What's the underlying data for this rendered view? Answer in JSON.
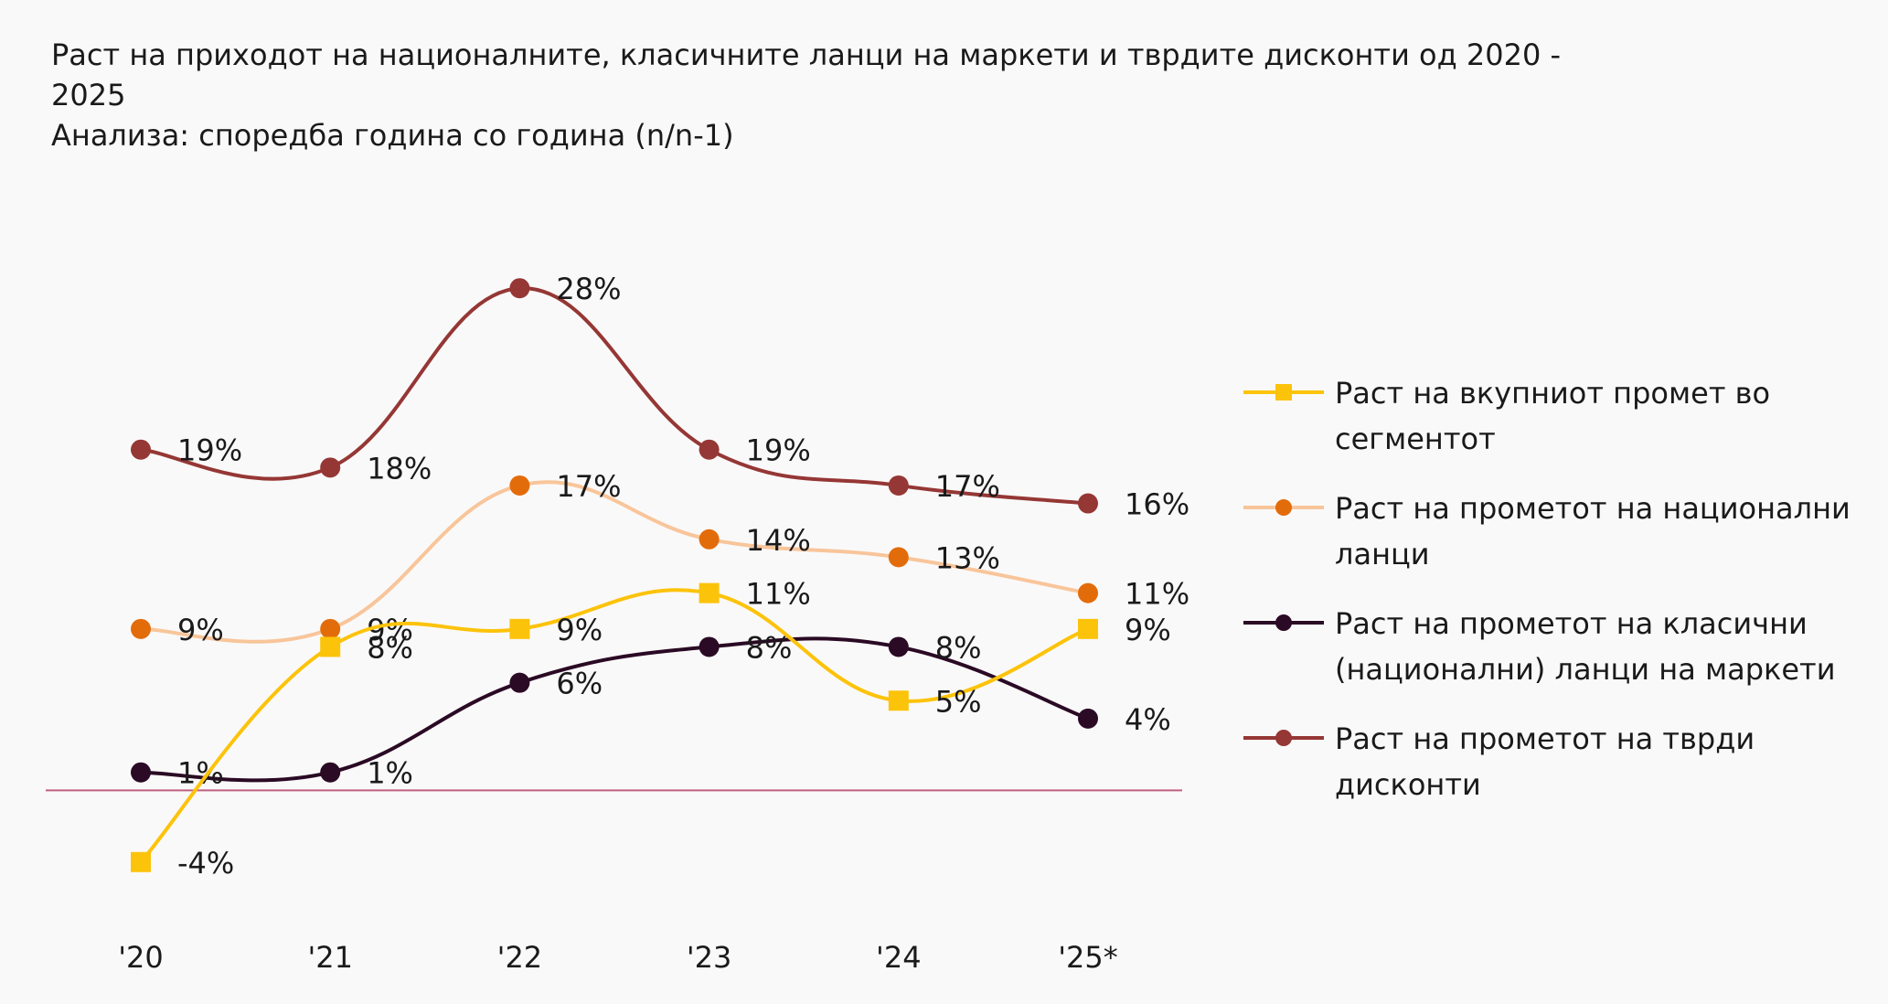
{
  "title": {
    "line1": "Раст на приходот на националните, класичните ланци на маркети и тврдите дисконти од 2020 -",
    "line2": "2025",
    "line3": "Анализа: споредба година со година (n/n-1)"
  },
  "chart_data": {
    "type": "line",
    "categories": [
      "'20",
      "'21",
      "'22",
      "'23",
      "'24",
      "'25*"
    ],
    "ylim": [
      -6,
      30
    ],
    "series": [
      {
        "name": "Раст на вкупниот промет во сегментот",
        "color": "#fcc30b",
        "marker": "square",
        "values": [
          -4,
          8,
          9,
          11,
          5,
          9
        ],
        "labels": [
          "-4%",
          "8%",
          "9%",
          "11%",
          "5%",
          "9%"
        ]
      },
      {
        "name": "Раст на прометот на национални ланци",
        "color": "#f8c59a",
        "markerColor": "#e36c0a",
        "marker": "circle",
        "values": [
          9,
          9,
          17,
          14,
          13,
          11
        ],
        "labels": [
          "9%",
          "9%",
          "17%",
          "14%",
          "13%",
          "11%"
        ]
      },
      {
        "name": "Раст на прометот на класични (национални) ланци на маркети",
        "color": "#2a0a24",
        "marker": "circle",
        "values": [
          1,
          1,
          6,
          8,
          8,
          4
        ],
        "labels": [
          "1%",
          "1%",
          "6%",
          "8%",
          "8%",
          "4%"
        ]
      },
      {
        "name": "Раст на прометот на тврди дисконти",
        "color": "#953735",
        "marker": "circle",
        "values": [
          19,
          18,
          28,
          19,
          17,
          16
        ],
        "labels": [
          "19%",
          "18%",
          "28%",
          "19%",
          "17%",
          "16%"
        ]
      }
    ],
    "zero_line_color": "#c06080"
  },
  "legend": {
    "items": [
      {
        "line1": "Раст на вкупниот промет во",
        "line2": "сегментот"
      },
      {
        "line1": "Раст на прометот на национални",
        "line2": "ланци"
      },
      {
        "line1": "Раст на прометот на класични",
        "line2": "(национални) ланци на маркети"
      },
      {
        "line1": "Раст на прометот на тврди",
        "line2": "дисконти"
      }
    ]
  }
}
